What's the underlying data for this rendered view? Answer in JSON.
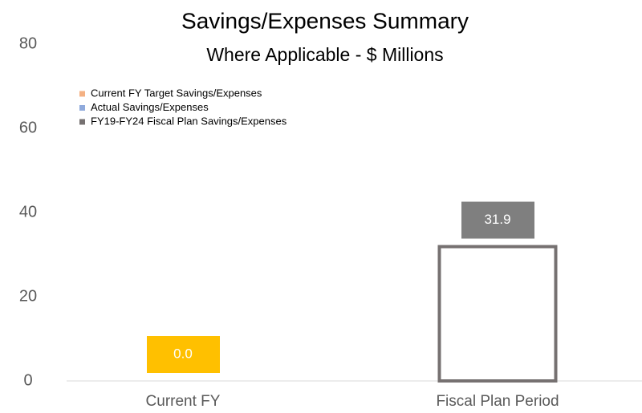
{
  "chart_data": {
    "type": "bar",
    "title": "Savings/Expenses Summary",
    "subtitle": "Where Applicable - $ Millions",
    "categories": [
      "Current FY",
      "Fiscal Plan Period"
    ],
    "series": [
      {
        "name": "Current FY Target Savings/Expenses",
        "color": "#f4b183",
        "label_color": "#ffc000",
        "values": [
          0,
          null
        ],
        "value_labels": [
          "0.0",
          null
        ]
      },
      {
        "name": "Actual Savings/Expenses",
        "color": "#8faadc",
        "values": [
          null,
          null
        ]
      },
      {
        "name": "FY19-FY24 Fiscal Plan Savings/Expenses",
        "color": "#767171",
        "label_color": "#7f7f7f",
        "outline": true,
        "values": [
          null,
          31.9
        ],
        "value_labels": [
          null,
          "31.9"
        ]
      }
    ],
    "ylim": [
      0,
      80
    ],
    "yticks": [
      0,
      20,
      40,
      60,
      80
    ],
    "grid": false,
    "legend": "top-left"
  }
}
